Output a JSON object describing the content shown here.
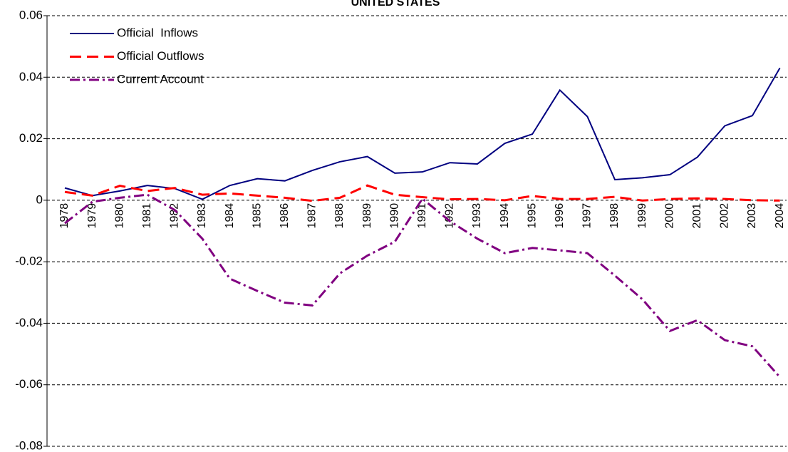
{
  "chart_data": {
    "type": "line",
    "title": "UNITED STATES",
    "categories": [
      "1978",
      "1979",
      "1980",
      "1981",
      "1982",
      "1983",
      "1984",
      "1985",
      "1986",
      "1987",
      "1988",
      "1989",
      "1990",
      "1991",
      "1992",
      "1993",
      "1994",
      "1995",
      "1996",
      "1997",
      "1998",
      "1999",
      "2000",
      "2001",
      "2002",
      "2003",
      "2004"
    ],
    "series": [
      {
        "name": "Official  Inflows",
        "color": "#000080",
        "dash": "solid",
        "values": [
          0.004,
          0.0015,
          0.003,
          0.0048,
          0.0038,
          0.0003,
          0.0048,
          0.007,
          0.0063,
          0.0097,
          0.0125,
          0.0142,
          0.0088,
          0.0092,
          0.0122,
          0.0118,
          0.0185,
          0.0215,
          0.0358,
          0.0272,
          0.0067,
          0.0073,
          0.0083,
          0.014,
          0.0242,
          0.0275,
          0.043
        ]
      },
      {
        "name": "Official Outflows",
        "color": "#ff0000",
        "dash": "dashed",
        "values": [
          0.0027,
          0.0015,
          0.0047,
          0.003,
          0.004,
          0.0018,
          0.0022,
          0.0015,
          0.0008,
          -0.0002,
          0.0008,
          0.0048,
          0.0018,
          0.001,
          0.0003,
          0.0004,
          0.0,
          0.0014,
          0.0004,
          0.0004,
          0.0011,
          -0.0001,
          0.0004,
          0.0006,
          0.0004,
          0.0,
          -0.0001
        ]
      },
      {
        "name": "Current Account",
        "color": "#800080",
        "dash": "dash-dot",
        "values": [
          -0.0075,
          -0.0005,
          0.0008,
          0.0018,
          -0.0032,
          -0.0125,
          -0.0255,
          -0.0295,
          -0.0333,
          -0.0342,
          -0.0238,
          -0.018,
          -0.0135,
          0.0005,
          -0.0068,
          -0.0125,
          -0.0172,
          -0.0155,
          -0.0163,
          -0.0172,
          -0.0245,
          -0.0322,
          -0.0425,
          -0.039,
          -0.0455,
          -0.0475,
          -0.0575
        ]
      }
    ],
    "ylim": [
      -0.08,
      0.06
    ],
    "yticks": [
      0.06,
      0.04,
      0.02,
      0,
      -0.02,
      -0.04,
      -0.06,
      -0.08
    ],
    "grid": true,
    "legend": "upper left"
  }
}
